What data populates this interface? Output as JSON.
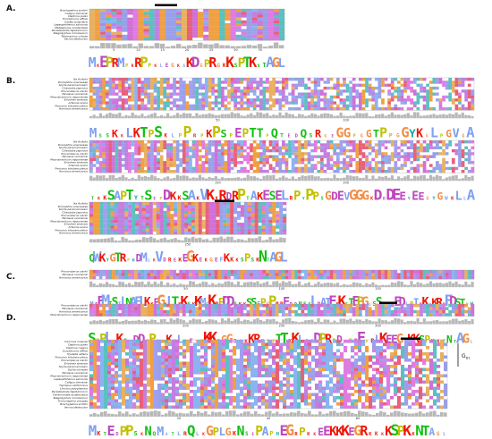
{
  "panels": [
    {
      "label": "A.",
      "blocks": [
        {
          "species": [
            "Brachypelma smithii",
            "Caligus clemensi",
            "Daphnia pulex",
            "Eurytemora affinis",
            "Ixodes scapularis",
            "Lepeophtheirus salmonis",
            "Metaseiulus occidentalis",
            "Parasteatoda tepidariorum",
            "Stegodyphus mimosarum",
            "Tetranychus urticae",
            "Varroa destructor"
          ],
          "ticks": [
            "5",
            "10",
            "15",
            "20",
            "25",
            "30",
            "35"
          ],
          "logo_seq": "MKEPRMPRRPPKLEGKAKDGPRGKKSPTKNTAGL"
        }
      ]
    },
    {
      "label": "B.",
      "blocks": [
        {
          "species": [
            "Ilia ficifolia",
            "Drosophila ananassae",
            "Scylla paramamosain",
            "Charybdis japonica",
            "Procambarus clarkii",
            "Penaeus vannamei",
            "Macrobrachium nipponense",
            "Eriocheir sinensis",
            "Artemia sinica",
            "Portunus trituberculatus",
            "Homarus americanus"
          ],
          "ticks": [
            "50",
            "100"
          ],
          "logo_seq": "MSSKKLKTPSKLPPRPKPSPEPTTPQTEDQSRGEGGPGGTPPGGYKGLPGVGA"
        },
        {
          "species": [
            "Ilia ficifolia",
            "Drosophila ananassae",
            "Scylla paramamosain",
            "Charybdis japonica",
            "Procambarus clarkii",
            "Penaeus vannamei",
            "Macrobrachium nipponense",
            "Eriocheir sinensis",
            "Artemia sinica",
            "Portunus trituberculatus",
            "Homarus americanus"
          ],
          "ticks": [
            "150",
            "200"
          ],
          "logo_seq": "TRKSAPTYTSEPDKKSAKVKKRDRPTAKESELRPYPPSGDEVGGGKDDDEEYEEGYGWKLLA"
        },
        {
          "species": [
            "Ilia ficifolia",
            "Drosophila ananassae",
            "Scylla paramamosain",
            "Charybdis japonica",
            "Procambarus clarkii",
            "Penaeus vannamei",
            "Macrobrachium nipponense",
            "Eriocheir sinensis",
            "Artemia sinica",
            "Portunus trituberculatus",
            "Homarus americanus"
          ],
          "ticks": [
            "250"
          ],
          "logo_seq": "QWKYGTRPHDMLKVDREKEGKEKGEFKKKSPSKNTAGL"
        }
      ]
    },
    {
      "label": "C.",
      "blocks": [
        {
          "species": [
            "Procambarus clarkii",
            "Penaeus vannamei",
            "Homarus americanus"
          ],
          "ticks": [
            "50",
            "100",
            "150"
          ],
          "logo_seq": "MEEMTSILNAFLKKEGKLTKKSKKMCKRPDDSKKSSFPGPRREDDNSSLDAIEKKSTEPGLSSSLEEDLPIRKVKRRFDSTPH"
        },
        {
          "species": [
            "Procambarus clarkii",
            "Penaeus vannamei",
            "Homarus americanus",
            "Macrobrachium nipponense"
          ],
          "ticks": [
            "200",
            "250",
            "300"
          ],
          "logo_seq": "SPPLSKSLDDSPPPKKLPEGKKKPGGDGKKRPSPTTKKLGEDPRPDFPDEPRLKEEGKKKSPKKTNTAGL"
        }
      ]
    },
    {
      "label": "D.",
      "bracket": "G",
      "bracket_sub": "D1",
      "blocks": [
        {
          "species": [
            "Carcinus maenas",
            "Daphnia pulex",
            "Daphnia magna",
            "Eurytemora affinis",
            "Hyalella azteca",
            "Portunus trituberculatus",
            "Procambarus clarkii",
            "Eriocheir sinensis",
            "Scylla paramamosain",
            "Scylla olivacea",
            "Penaeus vannamei",
            "Macrobrachium nipponense",
            "Lepeophtheirus salmonis",
            "Caligus clemensi",
            "Tigriopus californicus",
            "Limulus polyphemus",
            "Parasteatoda tepidariorum",
            "Centruroides sculpturatus",
            "Stegodyphus mimosarum",
            "Trichonephila clavipes",
            "Brachypelma smithii",
            "Varroa destructor"
          ],
          "ticks": [
            "20",
            "40",
            "60"
          ],
          "logo_seq": "MKTEDPPSKNQMATLRQLKGPLGKNSEPAPHEGRPKKEEKKKEGRKKKKSPKKNTAGL"
        }
      ]
    }
  ]
}
